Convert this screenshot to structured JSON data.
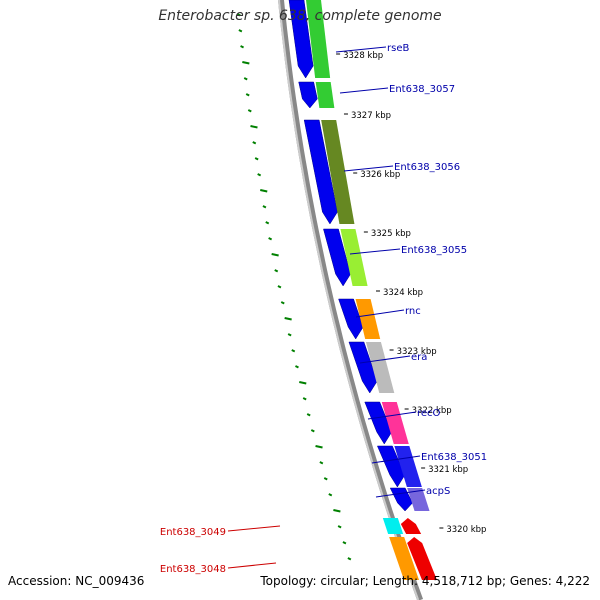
{
  "title": "Enterobacter sp. 638, complete genome",
  "accession": "Accession: NC_009436",
  "summary": "Topology: circular; Length: 4,518,712 bp; Genes: 4,222",
  "colors": {
    "backbone": "#888888",
    "gc_skew": "#008000",
    "forward_label": "#0000aa",
    "reverse_label": "#cc0000",
    "tick_label": "#000000"
  },
  "ticks": [
    "3328 kbp",
    "3327 kbp",
    "3326 kbp",
    "3325 kbp",
    "3324 kbp",
    "3323 kbp",
    "3322 kbp",
    "3321 kbp",
    "3320 kbp"
  ],
  "gene_labels_right": [
    "rseB",
    "Ent638_3057",
    "Ent638_3056",
    "Ent638_3055",
    "rnc",
    "era",
    "recO",
    "Ent638_3051",
    "acpS"
  ],
  "gene_labels_left": [
    "Ent638_3049",
    "Ent638_3048"
  ],
  "gene_colors": {
    "cog_rseB": "#33cc33",
    "cog_3057": "#33cc33",
    "cog_3056": "#668822",
    "cog_3055": "#99ee33",
    "cog_rnc": "#ff9900",
    "cog_era": "#bbbbbb",
    "cog_recO": "#ff3399",
    "cog_3051": "#2222ee",
    "cog_acpS": "#7766dd",
    "cog_3049": "#00eeee",
    "cog_3048": "#ff9900",
    "strand_forward": "#0000ee",
    "strand_reverse": "#ee0000"
  }
}
